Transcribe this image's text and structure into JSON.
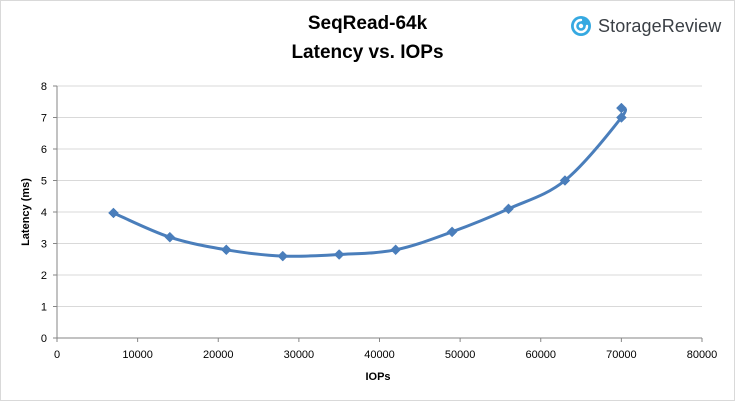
{
  "brand": {
    "name": "StorageReview",
    "accent": "#36a9e1"
  },
  "chart_data": {
    "type": "line",
    "title": "SeqRead-64k",
    "subtitle": "Latency vs. IOPs",
    "xlabel": "IOPs",
    "ylabel": "Latency (ms)",
    "xlim": [
      0,
      80000
    ],
    "ylim": [
      0,
      8
    ],
    "xticks": [
      0,
      10000,
      20000,
      30000,
      40000,
      50000,
      60000,
      70000,
      80000
    ],
    "yticks": [
      0,
      1,
      2,
      3,
      4,
      5,
      6,
      7,
      8
    ],
    "grid": "horizontal",
    "line_color": "#4a7ebb",
    "series": [
      {
        "x": [
          7000,
          14000,
          21000,
          28000,
          35000,
          42000,
          49000,
          56000,
          63000,
          70000,
          70000
        ],
        "y": [
          3.97,
          3.2,
          2.8,
          2.6,
          2.65,
          2.8,
          3.37,
          4.1,
          5.0,
          7.0,
          7.3
        ]
      }
    ]
  }
}
